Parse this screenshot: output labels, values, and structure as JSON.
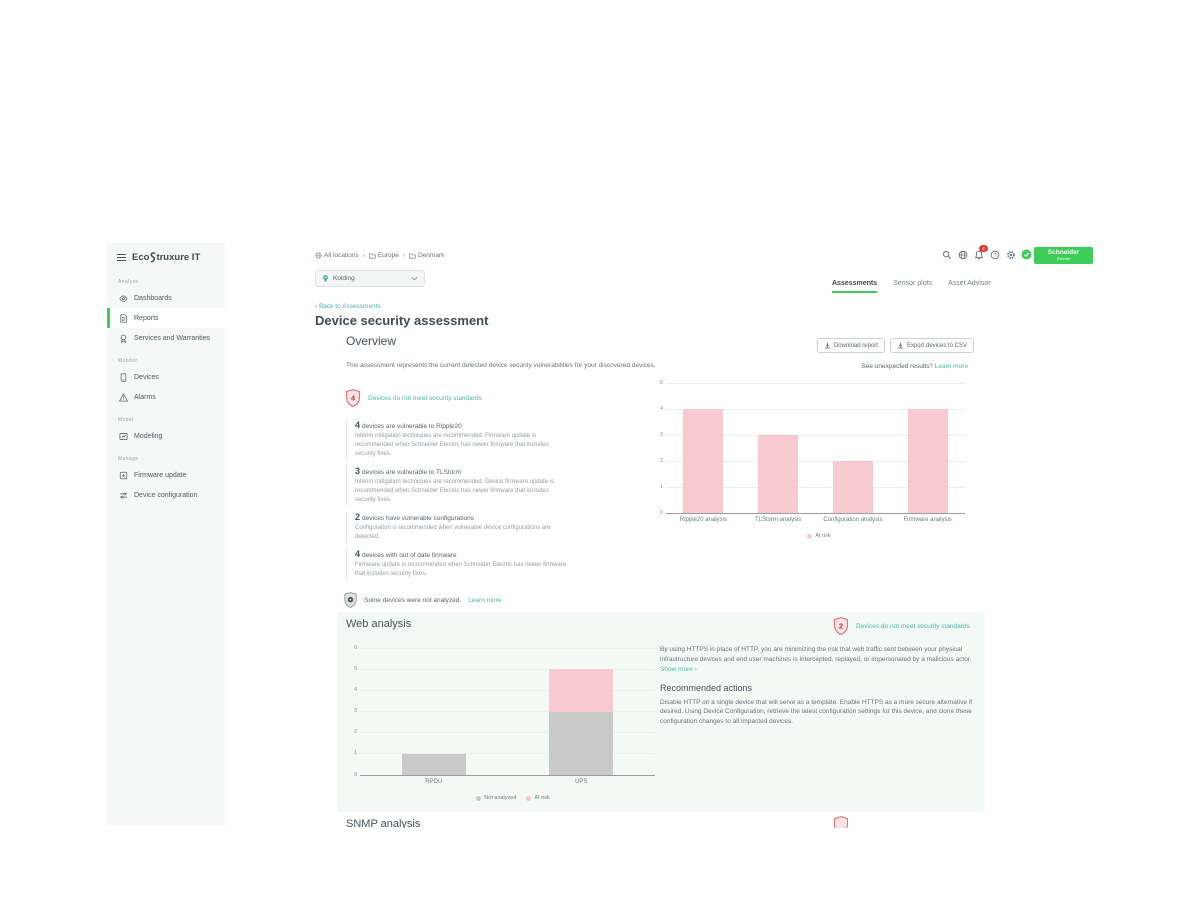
{
  "brand": {
    "eco": "Eco",
    "truxure": "truxure IT"
  },
  "sidebar": {
    "sections": [
      {
        "label": "Analyze",
        "items": [
          {
            "label": "Dashboards",
            "icon": "dashboards-icon",
            "active": false
          },
          {
            "label": "Reports",
            "icon": "reports-icon",
            "active": true
          },
          {
            "label": "Services and Warranties",
            "icon": "services-icon",
            "active": false
          }
        ]
      },
      {
        "label": "Monitor",
        "items": [
          {
            "label": "Devices",
            "icon": "devices-icon",
            "active": false
          },
          {
            "label": "Alarms",
            "icon": "alarms-icon",
            "active": false
          }
        ]
      },
      {
        "label": "Model",
        "items": [
          {
            "label": "Modeling",
            "icon": "modeling-icon",
            "active": false
          }
        ]
      },
      {
        "label": "Manage",
        "items": [
          {
            "label": "Firmware update",
            "icon": "firmware-icon",
            "active": false
          },
          {
            "label": "Device configuration",
            "icon": "device-config-icon",
            "active": false
          }
        ]
      }
    ]
  },
  "header": {
    "breadcrumb": [
      {
        "label": "All locations",
        "icon": "globe-icon"
      },
      {
        "label": "Europe",
        "icon": "folder-icon"
      },
      {
        "label": "Denmark",
        "icon": "folder-icon"
      }
    ],
    "location": "Kolding",
    "notification_count": "4",
    "logo_line1": "Schneider",
    "logo_line2": "Electric"
  },
  "tabs": [
    {
      "label": "Assessments",
      "active": true
    },
    {
      "label": "Sensor plots",
      "active": false
    },
    {
      "label": "Asset Advisor",
      "active": false
    }
  ],
  "page": {
    "back_link": "Back to Assessments",
    "title": "Device security assessment"
  },
  "overview": {
    "heading": "Overview",
    "download_label": "Download report",
    "export_label": "Export devices to CSV",
    "intro": "This assessment represents the current detected device security vulnerabilities for your discovered devices.",
    "unexpected_prefix": "See unexpected results?",
    "unexpected_link": "Learn more",
    "badge_count": "4",
    "badge_label": "Devices do not meet security standards",
    "findings": [
      {
        "count": "4",
        "title": "devices are vulnerable to Ripple20",
        "description": "Interim mitigation techniques are recommended. Firmware update is recommended when Schneider Electric has newer firmware that includes security fixes."
      },
      {
        "count": "3",
        "title": "devices are vulnerable to TLStorm",
        "description": "Interim mitigation techniques are recommended. Device firmware update is recommended when Schneider Electric has newer firmware that includes security fixes."
      },
      {
        "count": "2",
        "title": "devices have vulnerable configurations",
        "description": "Configuration is recommended when vulnerable device configurations are detected."
      },
      {
        "count": "4",
        "title": "devices with out of date firmware",
        "description": "Firmware update is recommended when Schneider Electric has newer firmware that includes security fixes."
      }
    ],
    "not_analyzed_text": "Some devices were not analyzed.",
    "not_analyzed_link": "Learn more"
  },
  "web_analysis": {
    "heading": "Web analysis",
    "badge_count": "2",
    "badge_label": "Devices do not meet security standards",
    "description": "By using HTTPS in place of HTTP, you are minimizing the risk that web traffic sent between your physical infrastructure devices and end user machines is intercepted, replayed, or impersonated by a malicious actor.",
    "show_more": "Show more ›",
    "actions_heading": "Recommended actions",
    "actions_text": "Disable HTTP on a single device that will serve as a template. Enable HTTPS as a more secure alternative if desired. Using Device Configuration, retrieve the latest configuration settings for this device, and clone these configuration changes to all impacted devices."
  },
  "snmp": {
    "heading": "SNMP analysis"
  },
  "colors": {
    "accent_green": "#3dcd58",
    "link_teal": "#4fb3ad",
    "risk_pink": "#f8c9cf",
    "not_analyzed_gray": "#c9c9c9",
    "badge_red": "#d9534f"
  },
  "chart_data": [
    {
      "type": "bar",
      "title": "",
      "xlabel": "",
      "ylabel": "",
      "categories": [
        "Ripple20 analysis",
        "TLStorm analysis",
        "Configuration analysis",
        "Firmware analysis"
      ],
      "series": [
        {
          "name": "At risk",
          "values": [
            4,
            3,
            2,
            4
          ],
          "color": "#f8c9cf"
        }
      ],
      "stacked": false,
      "ylim": [
        0,
        5
      ],
      "yticks": [
        0,
        1,
        2,
        3,
        4,
        5
      ],
      "grid": true,
      "legend_position": "bottom"
    },
    {
      "type": "bar",
      "title": "",
      "xlabel": "",
      "ylabel": "",
      "categories": [
        "RPDU",
        "UPS"
      ],
      "series": [
        {
          "name": "Not analyzed",
          "values": [
            1,
            3
          ],
          "color": "#c9c9c9"
        },
        {
          "name": "At risk",
          "values": [
            0,
            2
          ],
          "color": "#f8c9cf"
        }
      ],
      "stacked": true,
      "ylim": [
        0,
        6
      ],
      "yticks": [
        0,
        1,
        2,
        3,
        4,
        5,
        6
      ],
      "grid": true,
      "legend_position": "bottom"
    }
  ]
}
